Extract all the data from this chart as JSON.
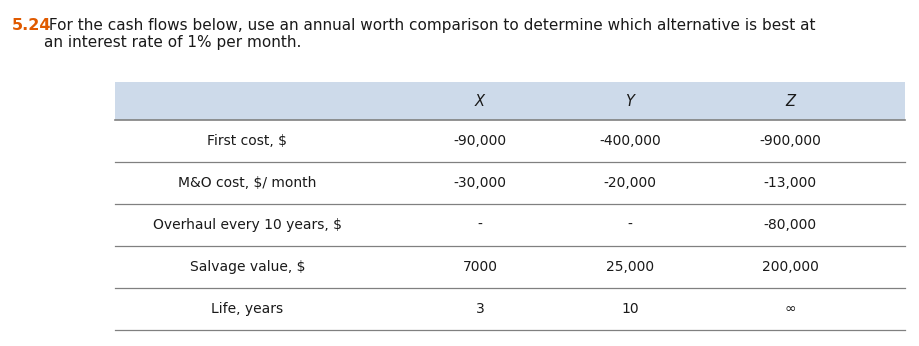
{
  "title_number": "5.24",
  "title_text": " For the cash flows below, use an annual worth comparison to determine which alternative is best at\nan interest rate of 1% per month.",
  "title_number_color": "#e05a00",
  "title_text_color": "#1a1a1a",
  "header_bg_color": "#cddaea",
  "table_bg_color": "#ffffff",
  "line_color": "#808080",
  "header_labels": [
    "X",
    "Y",
    "Z"
  ],
  "rows": [
    [
      "First cost, $",
      "-90,000",
      "-400,000",
      "-900,000"
    ],
    [
      "M&O cost, $/ month",
      "-30,000",
      "-20,000",
      "-13,000"
    ],
    [
      "Overhaul every 10 years, $",
      "-",
      "-",
      "-80,000"
    ],
    [
      "Salvage value, $",
      "7000",
      "25,000",
      "200,000"
    ],
    [
      "Life, years",
      "3",
      "10",
      "∞"
    ]
  ],
  "font_size": 10.0,
  "header_font_size": 10.5,
  "title_font_size": 11.0,
  "title_num_font_size": 11.5
}
